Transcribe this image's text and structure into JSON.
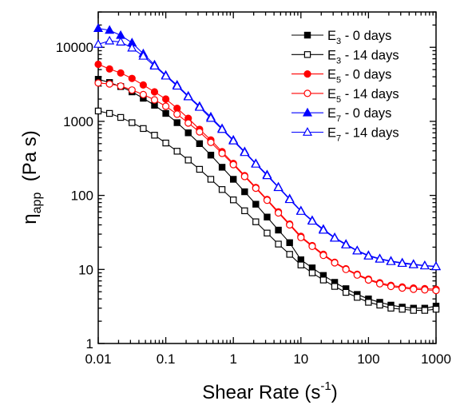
{
  "chart_data": {
    "type": "line",
    "xscale": "log",
    "yscale": "log",
    "xlim": [
      0.01,
      1000
    ],
    "ylim": [
      1,
      30000
    ],
    "xlabel": "Shear Rate (s",
    "xlabel_sup": "-1",
    "xlabel_tail": ")",
    "ylabel_symbol": "η",
    "ylabel_sub": "app",
    "ylabel_tail": "(Pa s)",
    "x_ticks": [
      0.01,
      0.1,
      1,
      10,
      100,
      1000
    ],
    "x_tick_labels": [
      "0.01",
      "0.1",
      "1",
      "10",
      "100",
      "1000"
    ],
    "y_ticks": [
      1,
      10,
      100,
      1000,
      10000
    ],
    "y_tick_labels": [
      "1",
      "10",
      "100",
      "1000",
      "10000"
    ],
    "grid": false,
    "legend_position": "top-right",
    "x": [
      0.01,
      0.0147,
      0.0215,
      0.0316,
      0.0464,
      0.0681,
      0.1,
      0.147,
      0.215,
      0.316,
      0.464,
      0.681,
      1,
      1.47,
      2.15,
      3.16,
      4.64,
      6.81,
      10,
      14.7,
      21.5,
      31.6,
      46.4,
      68.1,
      100,
      147,
      215,
      316,
      464,
      681,
      1000
    ],
    "series": [
      {
        "name": "E3 - 0 days",
        "label_main": "E",
        "label_sub": "3",
        "label_tail": " - 0 days",
        "color": "#000000",
        "marker": "square",
        "filled": true,
        "values": [
          3700,
          3350,
          2950,
          2500,
          2050,
          1650,
          1280,
          960,
          700,
          500,
          350,
          240,
          165,
          112,
          76,
          51,
          34,
          23,
          13.5,
          10.5,
          8.3,
          6.7,
          5.5,
          4.6,
          4.0,
          3.6,
          3.3,
          3.1,
          3.0,
          3.0,
          3.2
        ]
      },
      {
        "name": "E3 - 14 days",
        "label_main": "E",
        "label_sub": "3",
        "label_tail": " - 14 days",
        "color": "#000000",
        "marker": "square",
        "filled": false,
        "values": [
          1380,
          1280,
          1130,
          960,
          800,
          650,
          510,
          395,
          300,
          225,
          165,
          120,
          87,
          62,
          44,
          31,
          22,
          16,
          11.5,
          9.0,
          7.2,
          5.9,
          4.9,
          4.2,
          3.6,
          3.3,
          3.0,
          2.9,
          2.8,
          2.8,
          2.9
        ]
      },
      {
        "name": "E5 - 0 days",
        "label_main": "E",
        "label_sub": "5",
        "label_tail": " - 0 days",
        "color": "#ff0000",
        "marker": "circle",
        "filled": true,
        "values": [
          5900,
          5100,
          4500,
          3800,
          3100,
          2500,
          2000,
          1500,
          1100,
          780,
          560,
          390,
          270,
          185,
          128,
          88,
          60,
          41,
          28,
          21,
          16,
          12.5,
          10.2,
          8.6,
          7.4,
          6.6,
          6.1,
          5.8,
          5.6,
          5.5,
          5.4
        ]
      },
      {
        "name": "E5 - 14 days",
        "label_main": "E",
        "label_sub": "5",
        "label_tail": " - 14 days",
        "color": "#ff0000",
        "marker": "circle",
        "filled": false,
        "values": [
          3300,
          3200,
          3000,
          2650,
          2300,
          1950,
          1600,
          1250,
          950,
          720,
          520,
          370,
          260,
          180,
          125,
          86,
          58,
          40,
          27,
          20.5,
          15.5,
          12.3,
          10.0,
          8.4,
          7.2,
          6.4,
          5.9,
          5.6,
          5.4,
          5.3,
          5.2
        ]
      },
      {
        "name": "E7 - 0 days",
        "label_main": "E",
        "label_sub": "7",
        "label_tail": " - 0 days",
        "color": "#0000ff",
        "marker": "triangle",
        "filled": true,
        "values": [
          18000,
          17000,
          14500,
          11500,
          8200,
          5800,
          4200,
          3100,
          2200,
          1600,
          1150,
          800,
          560,
          390,
          270,
          190,
          130,
          90,
          62,
          46,
          35,
          27,
          22,
          18,
          15.5,
          14,
          13,
          12.3,
          11.8,
          11.3,
          11
        ]
      },
      {
        "name": "E7 - 14 days",
        "label_main": "E",
        "label_sub": "7",
        "label_tail": " - 14 days",
        "color": "#0000ff",
        "marker": "triangle",
        "filled": false,
        "values": [
          11000,
          12200,
          11800,
          9800,
          7600,
          5600,
          4100,
          3000,
          2150,
          1550,
          1100,
          780,
          545,
          380,
          265,
          185,
          128,
          88,
          61,
          45,
          34,
          26.5,
          21.5,
          17.8,
          15.2,
          13.8,
          12.8,
          12.1,
          11.6,
          11.2,
          10.9
        ]
      }
    ]
  }
}
